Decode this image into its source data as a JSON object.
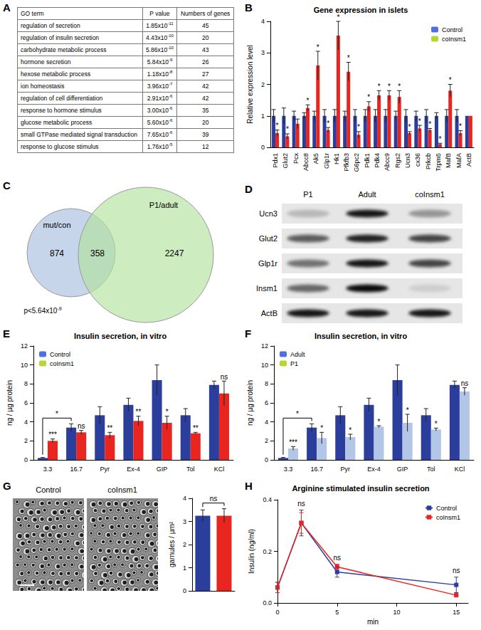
{
  "table": {
    "panel": "A",
    "header": [
      "GO term",
      "P value",
      "Numbers of genes"
    ],
    "rows": [
      {
        "term": "regulation of secretion",
        "p_value": {
          "text": "1.85x10",
          "exponent": "-11"
        },
        "genes": 45
      },
      {
        "term": "regulation of insulin secretion",
        "p_value": {
          "text": "4.43x10",
          "exponent": "-10"
        },
        "genes": 20
      },
      {
        "term": "carbohydrate metabolic process",
        "p_value": {
          "text": "5.86x10",
          "exponent": "-10"
        },
        "genes": 43
      },
      {
        "term": "hormone secretion",
        "p_value": {
          "text": "5.84x10",
          "exponent": "-9"
        },
        "genes": 26
      },
      {
        "term": "hexose metabolic process",
        "p_value": {
          "text": "1.18x10",
          "exponent": "-8"
        },
        "genes": 27
      },
      {
        "term": "ion homeostasis",
        "p_value": {
          "text": "3.96x10",
          "exponent": "-7"
        },
        "genes": 42
      },
      {
        "term": "regulation of cell differentiation",
        "p_value": {
          "text": "2.91x10",
          "exponent": "-6"
        },
        "genes": 42
      },
      {
        "term": "response to hormone stimulus",
        "p_value": {
          "text": "3.00x10",
          "exponent": "-6"
        },
        "genes": 35
      },
      {
        "term": "glucose metabolic process",
        "p_value": {
          "text": "5.60x10",
          "exponent": "-6"
        },
        "genes": 20
      },
      {
        "term": "small GTPase mediated signal transduction",
        "p_value": {
          "text": "7.65x10",
          "exponent": "-6"
        },
        "genes": 39
      },
      {
        "term": "response to glucose stimulus",
        "p_value": {
          "text": "1.76x10",
          "exponent": "-5"
        },
        "genes": 12
      }
    ]
  },
  "venn": {
    "panel": "C",
    "left_label": "mut/con",
    "right_label": "P1/adult",
    "left_only": 874,
    "overlap": 358,
    "right_only": 2247,
    "p_value": {
      "text": "p<5.64x10",
      "exponent": "-9"
    },
    "colors": [
      "#c6d5ea",
      "#b2e29c"
    ]
  },
  "blot": {
    "panel": "D",
    "lanes": [
      "P1",
      "Adult",
      "coInsm1"
    ],
    "rows": [
      {
        "label": "Ucn3",
        "intensity": [
          0.2,
          0.9,
          0.35
        ]
      },
      {
        "label": "Glut2",
        "intensity": [
          0.6,
          0.85,
          0.7
        ]
      },
      {
        "label": "Glp1r",
        "intensity": [
          0.5,
          0.9,
          0.7
        ]
      },
      {
        "label": "Insm1",
        "intensity": [
          0.55,
          0.95,
          0.1
        ]
      },
      {
        "label": "ActB",
        "intensity": [
          0.9,
          0.9,
          0.9
        ]
      }
    ]
  },
  "micrograph": {
    "labels": [
      "Control",
      "coInsm1"
    ]
  },
  "chart_data": [
    {
      "panel": "B",
      "type": "bar",
      "title": "Gene expression in islets",
      "y_label": "Relative expression level",
      "categories": [
        "Pdx1",
        "Glut2",
        "Pcx",
        "Abcc8",
        "Ak5",
        "Glp1r",
        "Hk1",
        "Pfkfb3",
        "G6pc2",
        "Pdk1",
        "Pdk4",
        "Abcc9",
        "Rgs2",
        "Ucn3",
        "cx36",
        "Prkcb",
        "Trpm5",
        "MafB",
        "MafA",
        "ActB"
      ],
      "series": [
        {
          "name": "Control",
          "color": "#2c3e9c",
          "values": [
            1,
            1,
            1,
            1,
            1,
            1,
            1,
            1,
            1,
            1,
            1,
            1,
            1,
            1,
            1,
            1,
            1,
            1,
            1,
            1
          ],
          "errors": [
            0.2,
            0.25,
            0.15,
            0.1,
            0.15,
            0.2,
            0.2,
            0.15,
            0.2,
            0.2,
            0.2,
            0.2,
            0.15,
            0.2,
            0.15,
            0.2,
            0.1,
            0.2,
            0.2,
            0
          ],
          "annotations": [
            null,
            null,
            null,
            null,
            null,
            null,
            null,
            null,
            null,
            null,
            null,
            null,
            null,
            null,
            null,
            null,
            null,
            null,
            null,
            null
          ]
        },
        {
          "name": "coInsm1",
          "color": "#e8251f",
          "values": [
            0.45,
            0.35,
            0.75,
            1.25,
            2.6,
            0.55,
            3.55,
            2.4,
            0.4,
            1.3,
            1.65,
            1.65,
            1.6,
            0.45,
            0.6,
            0.55,
            0.1,
            1.8,
            0.45,
            1.0
          ],
          "errors": [
            0.1,
            0.08,
            0.15,
            0.1,
            0.45,
            0.08,
            0.45,
            0.3,
            0.1,
            0.15,
            0.15,
            0.15,
            0.2,
            0.05,
            0.1,
            0.05,
            0.03,
            0.2,
            0.08,
            0
          ],
          "annotations": [
            "*",
            "*",
            null,
            "*",
            "*",
            "*",
            "*",
            "*",
            "*",
            "*",
            "*",
            "*",
            "*",
            "*",
            "*",
            "*",
            "*",
            "*",
            "*",
            null
          ]
        }
      ],
      "ylim": [
        0,
        4
      ],
      "yticks": [
        0,
        1,
        2,
        3,
        4
      ],
      "legend": "top-right",
      "grid": false
    },
    {
      "panel": "E",
      "type": "bar",
      "title": "Insulin secretion, in vitro",
      "y_label": "ng / µg protein",
      "categories": [
        "3.3",
        "16.7",
        "Pyr",
        "Ex-4",
        "GIP",
        "Tol",
        "KCl"
      ],
      "series": [
        {
          "name": "Control",
          "color": "#2c3e9c",
          "values": [
            0.2,
            3.4,
            4.7,
            5.8,
            8.4,
            4.7,
            7.9
          ],
          "errors": [
            0.05,
            0.4,
            0.9,
            0.7,
            1.6,
            0.7,
            0.4
          ],
          "annotations": [
            null,
            null,
            null,
            null,
            null,
            null,
            null
          ]
        },
        {
          "name": "coInsm1",
          "color": "#e8251f",
          "values": [
            2.0,
            2.9,
            2.6,
            4.1,
            3.9,
            2.8,
            7.0
          ],
          "errors": [
            0.2,
            0.2,
            0.3,
            0.5,
            0.7,
            0.1,
            1.3
          ],
          "annotations": [
            "***",
            "ns",
            "**",
            "**",
            "*",
            "**",
            "ns"
          ]
        }
      ],
      "brackets": [
        {
          "from": "3.3",
          "to": "16.7",
          "series": "Control",
          "label": "*"
        }
      ],
      "ylim": [
        0,
        12
      ],
      "yticks": [
        0,
        2,
        4,
        6,
        8,
        10,
        12
      ],
      "legend": "top-left",
      "grid": false
    },
    {
      "panel": "F",
      "type": "bar",
      "title": "Insulin secretion, in vitro",
      "y_label": "ng / µg protein",
      "categories": [
        "3.3",
        "16.7",
        "Pyr",
        "Ex-4",
        "GIP",
        "Tol",
        "KCl"
      ],
      "series": [
        {
          "name": "Adult",
          "color": "#2c3e9c",
          "values": [
            0.2,
            3.4,
            4.7,
            5.8,
            8.4,
            4.7,
            7.9
          ],
          "errors": [
            0.05,
            0.4,
            0.9,
            0.7,
            1.6,
            0.7,
            0.4
          ],
          "annotations": [
            null,
            null,
            null,
            null,
            null,
            null,
            null
          ]
        },
        {
          "name": "P1",
          "color": "#b3c6e7",
          "values": [
            1.2,
            2.3,
            2.4,
            3.5,
            3.9,
            3.2,
            7.2
          ],
          "errors": [
            0.2,
            0.6,
            0.3,
            0.1,
            0.9,
            0.15,
            0.4
          ],
          "annotations": [
            "***",
            "*",
            "*",
            "*",
            "*",
            "*",
            "ns"
          ]
        }
      ],
      "brackets": [
        {
          "from": "3.3",
          "to": "16.7",
          "series": "Adult",
          "label": "*"
        }
      ],
      "ylim": [
        0,
        12
      ],
      "yticks": [
        0,
        2,
        4,
        6,
        8,
        10,
        12
      ],
      "legend": "top-left",
      "grid": false
    },
    {
      "panel": "G",
      "type": "bar",
      "y_label": "garnules / µm²",
      "categories": [
        "Control",
        "coInsm1"
      ],
      "values": [
        3.25,
        3.25
      ],
      "errors": [
        0.25,
        0.3
      ],
      "colors": [
        "#2c3e9c",
        "#e8251f"
      ],
      "brackets": [
        {
          "from": "Control",
          "to": "coInsm1",
          "label": "ns"
        }
      ],
      "ylim": [
        0,
        4
      ],
      "yticks": [
        0,
        1,
        2,
        3,
        4
      ],
      "tick_labels": "y",
      "grid": false
    },
    {
      "panel": "H",
      "type": "line",
      "title": "Arginine stimulated insulin secretion",
      "x_label": "min",
      "y_label": "Insulin (ng/ml)",
      "series": [
        {
          "name": "Control",
          "color": "#2c3e9c",
          "x": [
            0,
            2,
            5,
            15
          ],
          "values": [
            0.06,
            0.31,
            0.12,
            0.07
          ],
          "errors": [
            0.02,
            0.05,
            0.02,
            0.03
          ]
        },
        {
          "name": "coInsm1",
          "color": "#e8251f",
          "x": [
            0,
            2,
            5,
            15
          ],
          "values": [
            0.06,
            0.31,
            0.14,
            0.03
          ],
          "errors": [
            0.02,
            0.04,
            0.01,
            0.005
          ]
        }
      ],
      "annotations": [
        {
          "x": 2,
          "label": "ns"
        },
        {
          "x": 5,
          "label": "ns"
        },
        {
          "x": 15,
          "label": "ns"
        }
      ],
      "xlim": [
        0,
        16
      ],
      "xticks": [
        0,
        5,
        10,
        15
      ],
      "ylim": [
        0,
        0.4
      ],
      "yticks": [
        {
          "value": 0,
          "label": "0.0"
        },
        {
          "value": 0.2,
          "label": "0.2"
        },
        {
          "value": 0.4,
          "label": "0.4"
        }
      ],
      "legend": "top-right",
      "marker": "square",
      "grid": false
    }
  ]
}
